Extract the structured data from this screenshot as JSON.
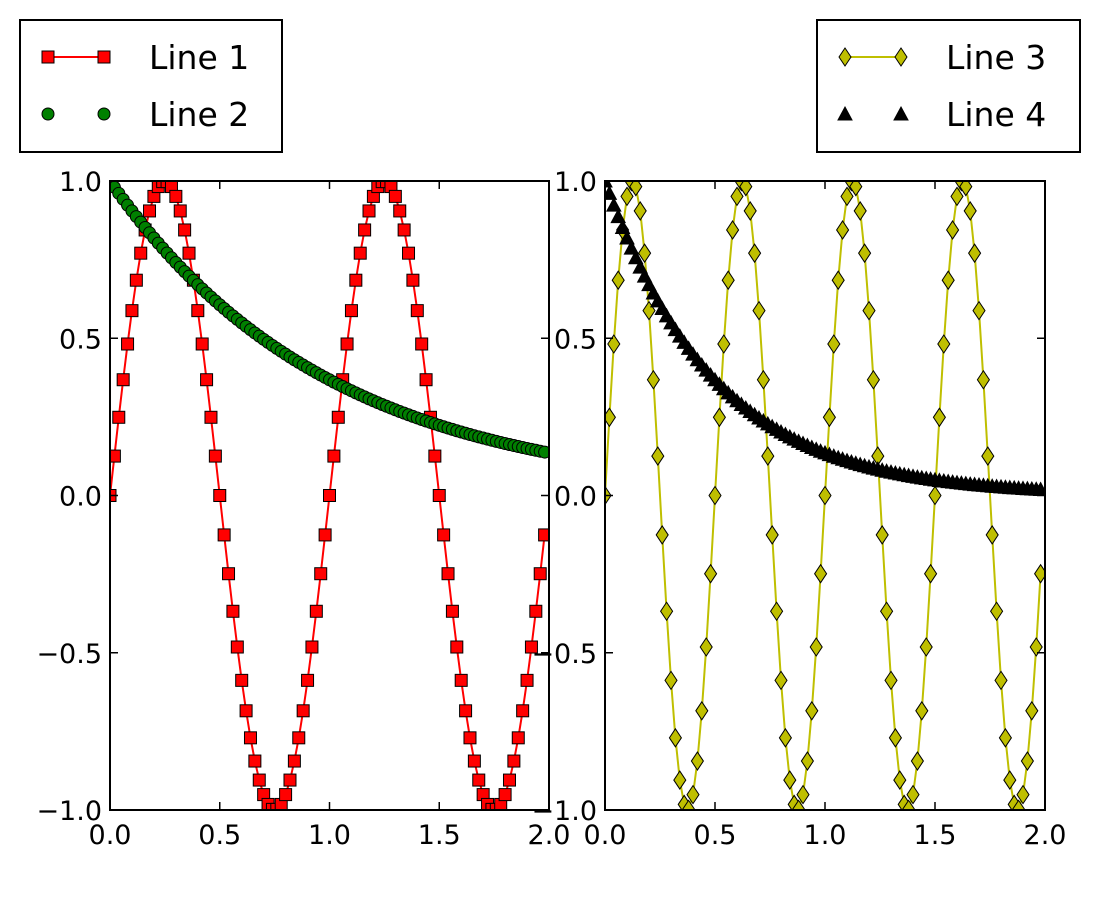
{
  "chart_data": [
    {
      "type": "line",
      "panel": "left",
      "x": {
        "start": 0,
        "stop": 2,
        "step": 0.02
      },
      "xlim": [
        0,
        2
      ],
      "ylim": [
        -1,
        1
      ],
      "xticks": [
        "0.0",
        "0.5",
        "1.0",
        "1.5",
        "2.0"
      ],
      "yticks": [
        "−1.0",
        "−0.5",
        "0.0",
        "0.5",
        "1.0"
      ],
      "legend_position": "above-left",
      "series": [
        {
          "name": "Line 1",
          "formula": "sin(2*pi*t)",
          "color": "#ff0000",
          "marker": "square",
          "linestyle": "solid"
        },
        {
          "name": "Line 2",
          "formula": "exp(-t)",
          "color": "#008000",
          "marker": "circle",
          "linestyle": "none"
        }
      ]
    },
    {
      "type": "line",
      "panel": "right",
      "x": {
        "start": 0,
        "stop": 2,
        "step": 0.02
      },
      "xlim": [
        0,
        2
      ],
      "ylim": [
        -1,
        1
      ],
      "xticks": [
        "0.0",
        "0.5",
        "1.0",
        "1.5",
        "2.0"
      ],
      "yticks": [
        "−1.0",
        "−0.5",
        "0.0",
        "0.5",
        "1.0"
      ],
      "legend_position": "above-right",
      "series": [
        {
          "name": "Line 3",
          "formula": "sin(4*pi*t)",
          "color": "#bfbf00",
          "marker": "diamond",
          "linestyle": "solid"
        },
        {
          "name": "Line 4",
          "formula": "exp(-2*t)",
          "color": "#000000",
          "marker": "triangle",
          "linestyle": "none"
        }
      ]
    }
  ]
}
